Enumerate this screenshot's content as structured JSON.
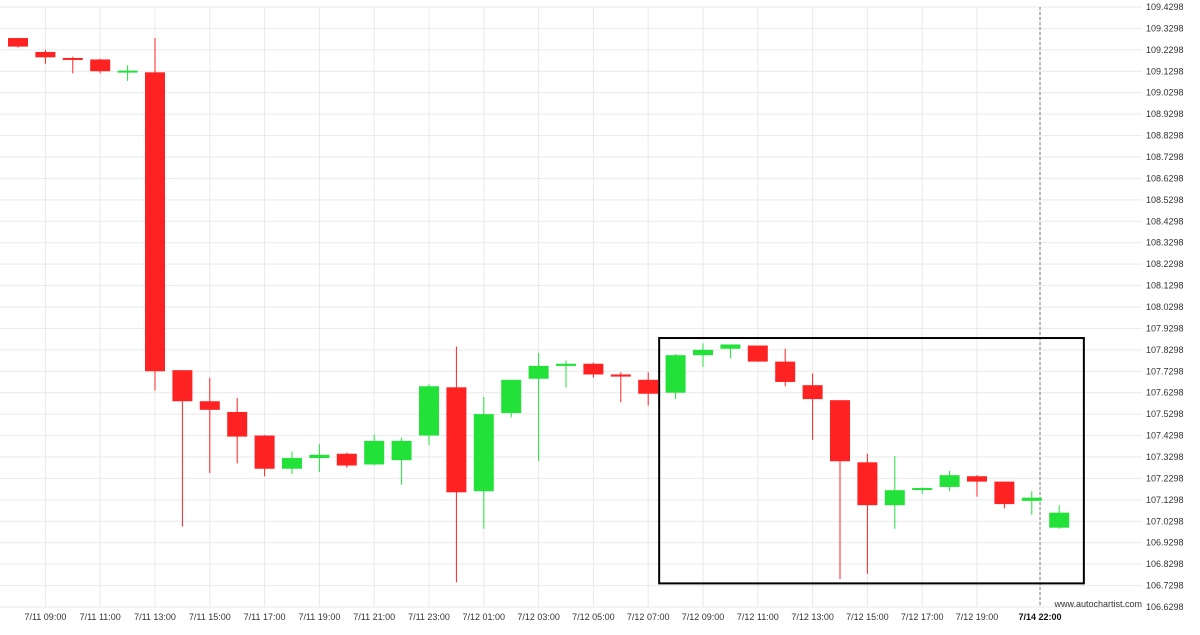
{
  "chart_data": {
    "type": "candlestick",
    "watermark": "www.autochartist.com",
    "colors": {
      "up": "#22e23a",
      "down": "#ff2222",
      "grid": "#e9e9e9",
      "box": "#000000",
      "vline": "#777777"
    },
    "grid": true,
    "ylim": [
      106.6298,
      109.4298
    ],
    "yticks": [
      "109.4298",
      "109.3298",
      "109.2298",
      "109.1298",
      "109.0298",
      "108.9298",
      "108.8298",
      "108.7298",
      "108.6298",
      "108.5298",
      "108.4298",
      "108.3298",
      "108.2298",
      "108.1298",
      "108.0298",
      "107.9298",
      "107.8298",
      "107.7298",
      "107.6298",
      "107.5298",
      "107.4298",
      "107.3298",
      "107.2298",
      "107.1298",
      "107.0298",
      "106.9298",
      "106.8298",
      "106.7298",
      "106.6298"
    ],
    "xticks": [
      {
        "index": 1,
        "label": "7/11 09:00"
      },
      {
        "index": 3,
        "label": "7/11 11:00"
      },
      {
        "index": 5,
        "label": "7/11 13:00"
      },
      {
        "index": 7,
        "label": "7/11 15:00"
      },
      {
        "index": 9,
        "label": "7/11 17:00"
      },
      {
        "index": 11,
        "label": "7/11 19:00"
      },
      {
        "index": 13,
        "label": "7/11 21:00"
      },
      {
        "index": 15,
        "label": "7/11 23:00"
      },
      {
        "index": 17,
        "label": "7/12 01:00"
      },
      {
        "index": 19,
        "label": "7/12 03:00"
      },
      {
        "index": 21,
        "label": "7/12 05:00"
      },
      {
        "index": 23,
        "label": "7/12 07:00"
      },
      {
        "index": 25,
        "label": "7/12 09:00"
      },
      {
        "index": 27,
        "label": "7/12 11:00"
      },
      {
        "index": 29,
        "label": "7/12 13:00"
      },
      {
        "index": 31,
        "label": "7/12 15:00"
      },
      {
        "index": 33,
        "label": "7/12 17:00"
      },
      {
        "index": 35,
        "label": "7/12 19:00"
      },
      {
        "index": 37.3,
        "label": "7/14 22:00",
        "bold": true
      }
    ],
    "candles": [
      {
        "o": 109.285,
        "h": 109.285,
        "l": 109.24,
        "c": 109.245
      },
      {
        "o": 109.22,
        "h": 109.23,
        "l": 109.165,
        "c": 109.195
      },
      {
        "o": 109.192,
        "h": 109.198,
        "l": 109.12,
        "c": 109.185
      },
      {
        "o": 109.185,
        "h": 109.188,
        "l": 109.12,
        "c": 109.13
      },
      {
        "o": 109.131,
        "h": 109.158,
        "l": 109.085,
        "c": 109.133
      },
      {
        "o": 109.125,
        "h": 109.285,
        "l": 107.64,
        "c": 107.73
      },
      {
        "o": 107.735,
        "h": 107.735,
        "l": 107.005,
        "c": 107.59
      },
      {
        "o": 107.59,
        "h": 107.7,
        "l": 107.255,
        "c": 107.55
      },
      {
        "o": 107.54,
        "h": 107.605,
        "l": 107.3,
        "c": 107.425
      },
      {
        "o": 107.43,
        "h": 107.432,
        "l": 107.24,
        "c": 107.275
      },
      {
        "o": 107.275,
        "h": 107.355,
        "l": 107.25,
        "c": 107.325
      },
      {
        "o": 107.325,
        "h": 107.39,
        "l": 107.26,
        "c": 107.34
      },
      {
        "o": 107.345,
        "h": 107.35,
        "l": 107.28,
        "c": 107.29
      },
      {
        "o": 107.295,
        "h": 107.435,
        "l": 107.29,
        "c": 107.405
      },
      {
        "o": 107.315,
        "h": 107.42,
        "l": 107.2,
        "c": 107.405
      },
      {
        "o": 107.43,
        "h": 107.67,
        "l": 107.385,
        "c": 107.66
      },
      {
        "o": 107.655,
        "h": 107.845,
        "l": 106.745,
        "c": 107.165
      },
      {
        "o": 107.17,
        "h": 107.61,
        "l": 106.995,
        "c": 107.53
      },
      {
        "o": 107.535,
        "h": 107.69,
        "l": 107.515,
        "c": 107.69
      },
      {
        "o": 107.695,
        "h": 107.815,
        "l": 107.31,
        "c": 107.755
      },
      {
        "o": 107.755,
        "h": 107.78,
        "l": 107.655,
        "c": 107.765
      },
      {
        "o": 107.765,
        "h": 107.77,
        "l": 107.7,
        "c": 107.715
      },
      {
        "o": 107.715,
        "h": 107.725,
        "l": 107.585,
        "c": 107.705
      },
      {
        "o": 107.69,
        "h": 107.725,
        "l": 107.57,
        "c": 107.625
      },
      {
        "o": 107.63,
        "h": 107.81,
        "l": 107.6,
        "c": 107.805
      },
      {
        "o": 107.805,
        "h": 107.86,
        "l": 107.75,
        "c": 107.83
      },
      {
        "o": 107.835,
        "h": 107.855,
        "l": 107.79,
        "c": 107.855
      },
      {
        "o": 107.85,
        "h": 107.85,
        "l": 107.775,
        "c": 107.775
      },
      {
        "o": 107.775,
        "h": 107.835,
        "l": 107.66,
        "c": 107.68
      },
      {
        "o": 107.665,
        "h": 107.72,
        "l": 107.41,
        "c": 107.6
      },
      {
        "o": 107.595,
        "h": 107.595,
        "l": 106.76,
        "c": 107.31
      },
      {
        "o": 107.305,
        "h": 107.345,
        "l": 106.785,
        "c": 107.105
      },
      {
        "o": 107.105,
        "h": 107.335,
        "l": 106.995,
        "c": 107.175
      },
      {
        "o": 107.178,
        "h": 107.188,
        "l": 107.158,
        "c": 107.185
      },
      {
        "o": 107.19,
        "h": 107.265,
        "l": 107.17,
        "c": 107.245
      },
      {
        "o": 107.24,
        "h": 107.245,
        "l": 107.145,
        "c": 107.215
      },
      {
        "o": 107.215,
        "h": 107.215,
        "l": 107.09,
        "c": 107.11
      },
      {
        "o": 107.125,
        "h": 107.17,
        "l": 107.06,
        "c": 107.14
      },
      {
        "o": 107.0,
        "h": 107.105,
        "l": 106.995,
        "c": 107.07
      }
    ],
    "highlight_box": {
      "start_index": 23.4,
      "end_index": 38.9,
      "price_top": 107.885,
      "price_bottom": 106.74
    },
    "vertical_line_index": 37.3
  }
}
